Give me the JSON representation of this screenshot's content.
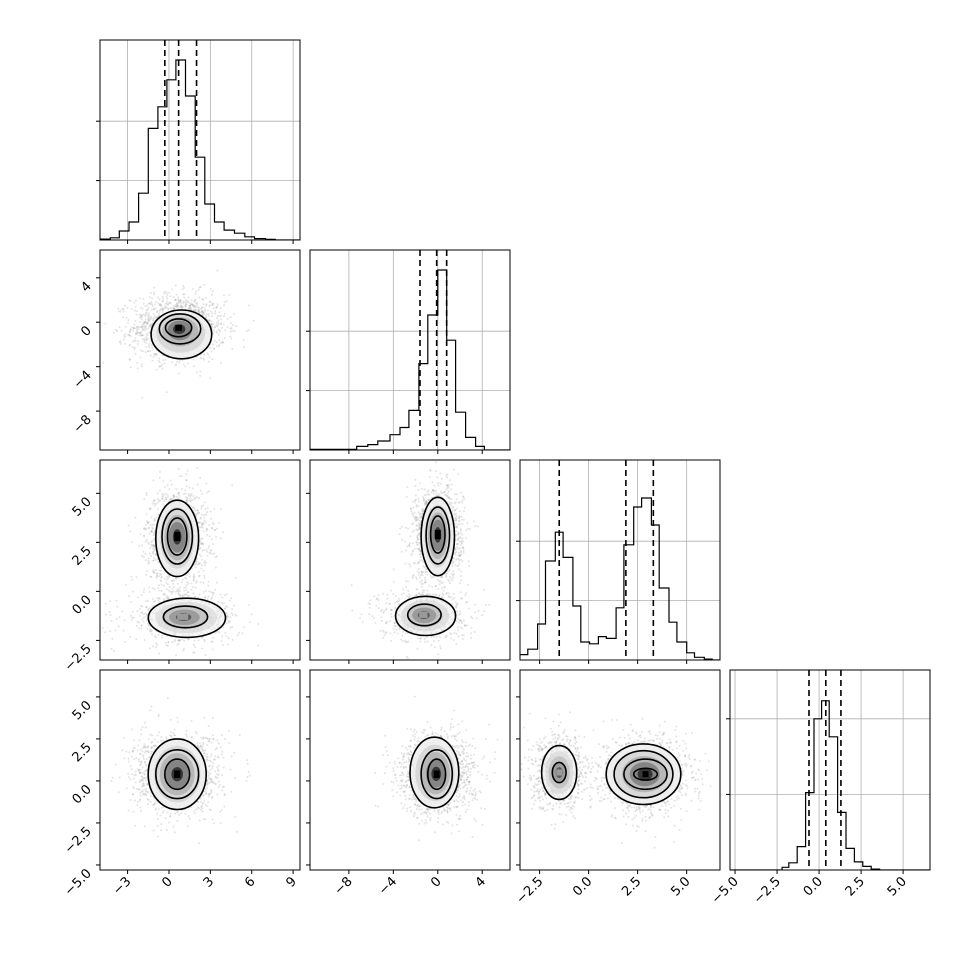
{
  "chart_data": {
    "type": "corner",
    "title": "",
    "grid": true,
    "colors": {
      "line": "#000000",
      "grid": "#b0b0b0",
      "scatter": "#9a9a9a",
      "background": "#ffffff"
    },
    "parameters": [
      {
        "index": 0,
        "range": [
          -5.0,
          9.5
        ],
        "ticks": [
          -3,
          0,
          3,
          6,
          9
        ],
        "tick_labels": [
          "−3",
          "0",
          "3",
          "6",
          "9"
        ],
        "quantiles": [
          -0.3,
          0.7,
          2.0
        ],
        "hist_y_ticks": [
          0.33,
          0.66
        ],
        "hist": [
          [
            -5.0,
            0.005
          ],
          [
            -4.25,
            0.012
          ],
          [
            -3.6,
            0.05
          ],
          [
            -2.9,
            0.1
          ],
          [
            -2.2,
            0.26
          ],
          [
            -1.5,
            0.62
          ],
          [
            -0.8,
            0.74
          ],
          [
            -0.15,
            0.89
          ],
          [
            0.5,
            1.0
          ],
          [
            1.2,
            0.8
          ],
          [
            1.9,
            0.46
          ],
          [
            2.6,
            0.2
          ],
          [
            3.3,
            0.1
          ],
          [
            4.0,
            0.055
          ],
          [
            4.75,
            0.038
          ],
          [
            5.5,
            0.018
          ],
          [
            6.2,
            0.008
          ],
          [
            7.0,
            0.004
          ],
          [
            7.7,
            0.0
          ]
        ]
      },
      {
        "index": 1,
        "range": [
          -11.5,
          6.5
        ],
        "ticks": [
          -8,
          -4,
          0,
          4
        ],
        "tick_labels": [
          "−8",
          "−4",
          "0",
          "4"
        ],
        "quantiles": [
          -1.6,
          -0.1,
          0.8
        ],
        "hist_y_ticks": [
          0.33,
          0.66
        ],
        "hist": [
          [
            -11.5,
            0.004
          ],
          [
            -7.3,
            0.02
          ],
          [
            -6.3,
            0.03
          ],
          [
            -5.4,
            0.05
          ],
          [
            -4.3,
            0.085
          ],
          [
            -3.4,
            0.125
          ],
          [
            -2.6,
            0.22
          ],
          [
            -1.7,
            0.48
          ],
          [
            -0.9,
            0.75
          ],
          [
            0.0,
            1.0
          ],
          [
            0.8,
            0.61
          ],
          [
            1.6,
            0.21
          ],
          [
            2.5,
            0.07
          ],
          [
            3.4,
            0.02
          ],
          [
            4.2,
            0.0
          ]
        ]
      },
      {
        "index": 2,
        "range": [
          -3.5,
          6.7
        ],
        "ticks": [
          -2.5,
          0.0,
          2.5,
          5.0
        ],
        "tick_labels": [
          "−2.5",
          "0.0",
          "2.5",
          "5.0"
        ],
        "quantiles": [
          -1.5,
          1.9,
          3.3
        ],
        "hist_y_ticks": [
          0.33,
          0.66
        ],
        "hist": [
          [
            -3.5,
            0.03
          ],
          [
            -3.1,
            0.06
          ],
          [
            -2.6,
            0.2
          ],
          [
            -2.2,
            0.55
          ],
          [
            -1.7,
            0.71
          ],
          [
            -1.3,
            0.57
          ],
          [
            -0.8,
            0.3
          ],
          [
            -0.4,
            0.1
          ],
          [
            0.05,
            0.09
          ],
          [
            0.5,
            0.13
          ],
          [
            0.9,
            0.12
          ],
          [
            1.4,
            0.29
          ],
          [
            1.8,
            0.64
          ],
          [
            2.3,
            0.85
          ],
          [
            2.7,
            0.9
          ],
          [
            3.2,
            0.75
          ],
          [
            3.6,
            0.4
          ],
          [
            4.1,
            0.21
          ],
          [
            4.5,
            0.1
          ],
          [
            5.0,
            0.04
          ],
          [
            5.4,
            0.015
          ],
          [
            5.9,
            0.005
          ],
          [
            6.3,
            0.0
          ]
        ]
      },
      {
        "index": 3,
        "range": [
          -5.3,
          6.6
        ],
        "ticks": [
          -5.0,
          -2.5,
          0.0,
          2.5,
          5.0
        ],
        "tick_labels": [
          "−5.0",
          "−2.5",
          "0.0",
          "2.5",
          "5.0"
        ],
        "quantiles": [
          -0.6,
          0.4,
          1.3
        ],
        "hist_y_ticks": [
          0.42,
          0.84
        ],
        "hist": [
          [
            -5.3,
            0.0
          ],
          [
            -2.2,
            0.015
          ],
          [
            -1.8,
            0.04
          ],
          [
            -1.3,
            0.13
          ],
          [
            -0.8,
            0.43
          ],
          [
            -0.3,
            0.84
          ],
          [
            0.15,
            0.94
          ],
          [
            0.6,
            0.74
          ],
          [
            1.1,
            0.32
          ],
          [
            1.6,
            0.12
          ],
          [
            2.1,
            0.045
          ],
          [
            2.6,
            0.02
          ],
          [
            3.1,
            0.005
          ],
          [
            3.6,
            0.0
          ]
        ]
      }
    ],
    "pairs": [
      {
        "x": 0,
        "y": 1,
        "clusters": [
          {
            "center": [
              0.7,
              -0.5
            ],
            "spread": [
              1.7,
              1.5
            ],
            "density": 1.0,
            "contours": [
              {
                "rx": 0.95,
                "ry": 0.8,
                "dx": 0,
                "dy": 0
              },
              {
                "rx": 1.5,
                "ry": 1.35,
                "dx": 0.1,
                "dy": -0.1
              },
              {
                "rx": 2.2,
                "ry": 2.2,
                "dx": 0.2,
                "dy": -0.6
              }
            ]
          }
        ]
      },
      {
        "x": 0,
        "y": 2,
        "clusters": [
          {
            "center": [
              0.6,
              2.8
            ],
            "spread": [
              1.1,
              1.2
            ],
            "density": 1.0,
            "contours": [
              {
                "rx": 0.7,
                "ry": 0.95,
                "dx": 0,
                "dy": 0
              },
              {
                "rx": 1.1,
                "ry": 1.4,
                "dx": 0,
                "dy": 0
              },
              {
                "rx": 1.55,
                "ry": 1.95,
                "dx": 0,
                "dy": -0.1
              }
            ]
          },
          {
            "center": [
              1.0,
              -1.3
            ],
            "spread": [
              2.1,
              0.7
            ],
            "density": 0.45,
            "contours": [
              {
                "rx": 1.6,
                "ry": 0.55,
                "dx": 0.2,
                "dy": 0.0
              },
              {
                "rx": 2.8,
                "ry": 1.0,
                "dx": 0.3,
                "dy": -0.05
              }
            ]
          }
        ]
      },
      {
        "x": 1,
        "y": 2,
        "clusters": [
          {
            "center": [
              0.0,
              2.9
            ],
            "spread": [
              1.1,
              1.2
            ],
            "density": 1.0,
            "contours": [
              {
                "rx": 0.65,
                "ry": 0.95,
                "dx": 0,
                "dy": 0
              },
              {
                "rx": 1.05,
                "ry": 1.45,
                "dx": 0,
                "dy": -0.05
              },
              {
                "rx": 1.5,
                "ry": 2.0,
                "dx": 0,
                "dy": -0.1
              }
            ]
          },
          {
            "center": [
              -1.3,
              -1.2
            ],
            "spread": [
              2.0,
              0.7
            ],
            "density": 0.45,
            "contours": [
              {
                "rx": 1.5,
                "ry": 0.55,
                "dx": 0.1,
                "dy": 0
              },
              {
                "rx": 2.7,
                "ry": 1.0,
                "dx": 0.2,
                "dy": -0.05
              }
            ]
          }
        ]
      },
      {
        "x": 0,
        "y": 3,
        "clusters": [
          {
            "center": [
              0.6,
              0.4
            ],
            "spread": [
              1.6,
              1.2
            ],
            "density": 1.0,
            "contours": [
              {
                "rx": 0.9,
                "ry": 0.9,
                "dx": 0,
                "dy": 0
              },
              {
                "rx": 1.55,
                "ry": 1.45,
                "dx": 0,
                "dy": 0
              },
              {
                "rx": 2.1,
                "ry": 2.1,
                "dx": 0,
                "dy": 0
              }
            ]
          }
        ]
      },
      {
        "x": 1,
        "y": 3,
        "clusters": [
          {
            "center": [
              -0.1,
              0.4
            ],
            "spread": [
              1.7,
              1.2
            ],
            "density": 1.0,
            "contours": [
              {
                "rx": 0.8,
                "ry": 0.9,
                "dx": 0,
                "dy": 0
              },
              {
                "rx": 1.4,
                "ry": 1.45,
                "dx": 0,
                "dy": 0
              },
              {
                "rx": 2.2,
                "ry": 2.1,
                "dx": -0.2,
                "dy": 0.1
              }
            ]
          }
        ]
      },
      {
        "x": 2,
        "y": 3,
        "clusters": [
          {
            "center": [
              -1.5,
              0.5
            ],
            "spread": [
              0.7,
              1.1
            ],
            "density": 0.55,
            "contours": [
              {
                "rx": 0.35,
                "ry": 0.6,
                "dx": 0,
                "dy": 0
              },
              {
                "rx": 0.9,
                "ry": 1.6,
                "dx": 0,
                "dy": 0
              }
            ]
          },
          {
            "center": [
              2.9,
              0.4
            ],
            "spread": [
              1.1,
              1.1
            ],
            "density": 1.0,
            "contours": [
              {
                "rx": 0.6,
                "ry": 0.35,
                "dx": 0,
                "dy": 0
              },
              {
                "rx": 1.1,
                "ry": 0.9,
                "dx": 0,
                "dy": 0
              },
              {
                "rx": 1.5,
                "ry": 1.4,
                "dx": -0.1,
                "dy": 0
              },
              {
                "rx": 1.9,
                "ry": 1.8,
                "dx": -0.1,
                "dy": 0
              }
            ]
          }
        ]
      }
    ]
  }
}
